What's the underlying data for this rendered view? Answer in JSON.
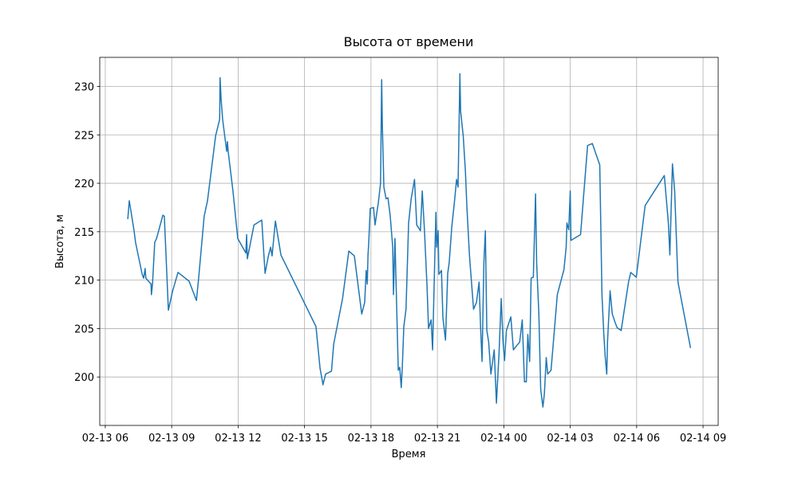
{
  "chart_data": {
    "type": "line",
    "title": "Высота от времени",
    "xlabel": "Время",
    "ylabel": "Высота, м",
    "grid": true,
    "color": "#1f77b4",
    "x": [
      "02-13 07:01",
      "02-13 07:05",
      "02-13 07:18",
      "02-13 07:22",
      "02-13 07:40",
      "02-13 07:44",
      "02-13 07:48",
      "02-13 07:50",
      "02-13 08:04",
      "02-13 08:05",
      "02-13 08:08",
      "02-13 08:14",
      "02-13 08:19",
      "02-13 08:36",
      "02-13 08:40",
      "02-13 08:51",
      "02-13 09:02",
      "02-13 09:17",
      "02-13 09:47",
      "02-13 10:07",
      "02-13 10:13",
      "02-13 10:28",
      "02-13 10:37",
      "02-13 10:59",
      "02-13 11:10",
      "02-13 11:11",
      "02-13 11:14",
      "02-13 11:18",
      "02-13 11:29",
      "02-13 11:31",
      "02-13 11:33",
      "02-13 11:46",
      "02-13 11:59",
      "02-13 12:21",
      "02-13 12:23",
      "02-13 12:25",
      "02-13 12:43",
      "02-13 13:04",
      "02-13 13:13",
      "02-13 13:22",
      "02-13 13:28",
      "02-13 13:32",
      "02-13 13:41",
      "02-13 13:56",
      "02-13 15:31",
      "02-13 15:42",
      "02-13 15:50",
      "02-13 15:57",
      "02-13 16:13",
      "02-13 16:19",
      "02-13 16:43",
      "02-13 17:00",
      "02-13 17:15",
      "02-13 17:35",
      "02-13 17:43",
      "02-13 17:47",
      "02-13 17:50",
      "02-13 17:52",
      "02-13 17:54",
      "02-13 17:58",
      "02-13 18:07",
      "02-13 18:11",
      "02-13 18:20",
      "02-13 18:26",
      "02-13 18:29",
      "02-13 18:31",
      "02-13 18:35",
      "02-13 18:41",
      "02-13 18:46",
      "02-13 18:52",
      "02-13 18:59",
      "02-13 19:01",
      "02-13 19:05",
      "02-13 19:14",
      "02-13 19:18",
      "02-13 19:22",
      "02-13 19:25",
      "02-13 19:29",
      "02-13 19:35",
      "02-13 19:42",
      "02-13 19:49",
      "02-13 19:58",
      "02-13 20:04",
      "02-13 20:14",
      "02-13 20:19",
      "02-13 20:25",
      "02-13 20:32",
      "02-13 20:36",
      "02-13 20:43",
      "02-13 20:47",
      "02-13 20:52",
      "02-13 20:56",
      "02-13 20:58",
      "02-13 21:02",
      "02-13 21:04",
      "02-13 21:11",
      "02-13 21:15",
      "02-13 21:22",
      "02-13 21:28",
      "02-13 21:32",
      "02-13 21:39",
      "02-13 21:46",
      "02-13 21:52",
      "02-13 21:56",
      "02-13 22:01",
      "02-13 22:03",
      "02-13 22:10",
      "02-13 22:16",
      "02-13 22:20",
      "02-13 22:27",
      "02-13 22:38",
      "02-13 22:46",
      "02-13 22:53",
      "02-13 22:57",
      "02-13 23:01",
      "02-13 23:06",
      "02-13 23:10",
      "02-13 23:14",
      "02-13 23:19",
      "02-13 23:25",
      "02-13 23:29",
      "02-13 23:34",
      "02-13 23:40",
      "02-13 23:47",
      "02-13 23:53",
      "02-13 23:58",
      "02-14 00:02",
      "02-14 00:07",
      "02-14 00:19",
      "02-14 00:26",
      "02-14 00:34",
      "02-14 00:43",
      "02-14 00:50",
      "02-14 00:56",
      "02-14 01:01",
      "02-14 01:05",
      "02-14 01:10",
      "02-14 01:14",
      "02-14 01:20",
      "02-14 01:26",
      "02-14 01:29",
      "02-14 01:35",
      "02-14 01:40",
      "02-14 01:46",
      "02-14 01:50",
      "02-14 01:55",
      "02-14 01:59",
      "02-14 02:08",
      "02-14 02:25",
      "02-14 02:43",
      "02-14 02:49",
      "02-14 02:51",
      "02-14 02:56",
      "02-14 03:00",
      "02-14 03:02",
      "02-14 03:28",
      "02-14 03:47",
      "02-14 04:00",
      "02-14 04:20",
      "02-14 04:26",
      "02-14 04:31",
      "02-14 04:35",
      "02-14 04:39",
      "02-14 04:41",
      "02-14 04:48",
      "02-14 04:54",
      "02-14 05:01",
      "02-14 05:07",
      "02-14 05:18",
      "02-14 05:38",
      "02-14 05:44",
      "02-14 05:59",
      "02-14 06:23",
      "02-14 07:15",
      "02-14 07:26",
      "02-14 07:30",
      "02-14 07:37",
      "02-14 07:43",
      "02-14 07:52",
      "02-14 08:26"
    ],
    "values": [
      216.3,
      218.2,
      215.1,
      213.9,
      210.6,
      210.2,
      211.2,
      210.2,
      209.6,
      208.5,
      209.6,
      213.9,
      214.3,
      216.7,
      216.6,
      206.9,
      208.8,
      210.8,
      209.9,
      207.9,
      210.2,
      216.6,
      218.2,
      224.9,
      226.6,
      230.9,
      228.6,
      226.6,
      223.3,
      224.3,
      223.3,
      219.2,
      214.3,
      212.8,
      214.7,
      212.2,
      215.7,
      216.2,
      210.7,
      212.5,
      213.4,
      212.5,
      216.1,
      212.6,
      205.2,
      200.9,
      199.2,
      200.3,
      200.6,
      203.4,
      208.1,
      213.0,
      212.5,
      206.5,
      207.7,
      211.0,
      209.6,
      212.6,
      213.9,
      217.4,
      217.5,
      215.7,
      218.0,
      220.0,
      230.7,
      225.7,
      219.6,
      218.4,
      218.5,
      216.7,
      213.4,
      208.5,
      214.3,
      200.7,
      201.0,
      198.9,
      201.1,
      205.2,
      207.0,
      215.9,
      218.4,
      220.4,
      215.7,
      215.1,
      219.2,
      215.1,
      209.3,
      205.0,
      205.9,
      202.8,
      210.8,
      217.0,
      213.4,
      215.1,
      210.6,
      211.0,
      206.1,
      203.8,
      210.7,
      211.8,
      215.5,
      218.0,
      220.4,
      219.6,
      231.3,
      227.4,
      224.9,
      221.2,
      217.5,
      212.5,
      207.0,
      207.7,
      209.8,
      205.2,
      201.6,
      211.8,
      215.1,
      204.8,
      203.6,
      200.3,
      201.4,
      202.8,
      197.3,
      202.4,
      208.1,
      203.6,
      201.7,
      204.8,
      206.2,
      202.8,
      203.2,
      203.6,
      205.9,
      199.5,
      199.5,
      204.4,
      201.6,
      210.2,
      210.3,
      218.9,
      211.8,
      206.5,
      198.7,
      196.9,
      198.3,
      202.0,
      200.3,
      200.7,
      208.5,
      211.1,
      213.4,
      215.9,
      215.2,
      219.2,
      214.1,
      214.7,
      223.9,
      224.1,
      221.9,
      208.5,
      204.4,
      202.0,
      200.3,
      203.6,
      208.9,
      206.5,
      205.7,
      205.1,
      204.8,
      209.8,
      210.8,
      210.3,
      217.7,
      220.8,
      215.9,
      212.6,
      222.0,
      219.2,
      209.8,
      203.0
    ],
    "xlim": [
      "02-13 05:45",
      "02-14 09:41"
    ],
    "xticks": [
      "02-13 06",
      "02-13 09",
      "02-13 12",
      "02-13 15",
      "02-13 18",
      "02-13 21",
      "02-14 00",
      "02-14 03",
      "02-14 06",
      "02-14 09"
    ],
    "ylim": [
      195.0,
      233.0
    ],
    "yticks": [
      200,
      205,
      210,
      215,
      220,
      225,
      230
    ]
  }
}
